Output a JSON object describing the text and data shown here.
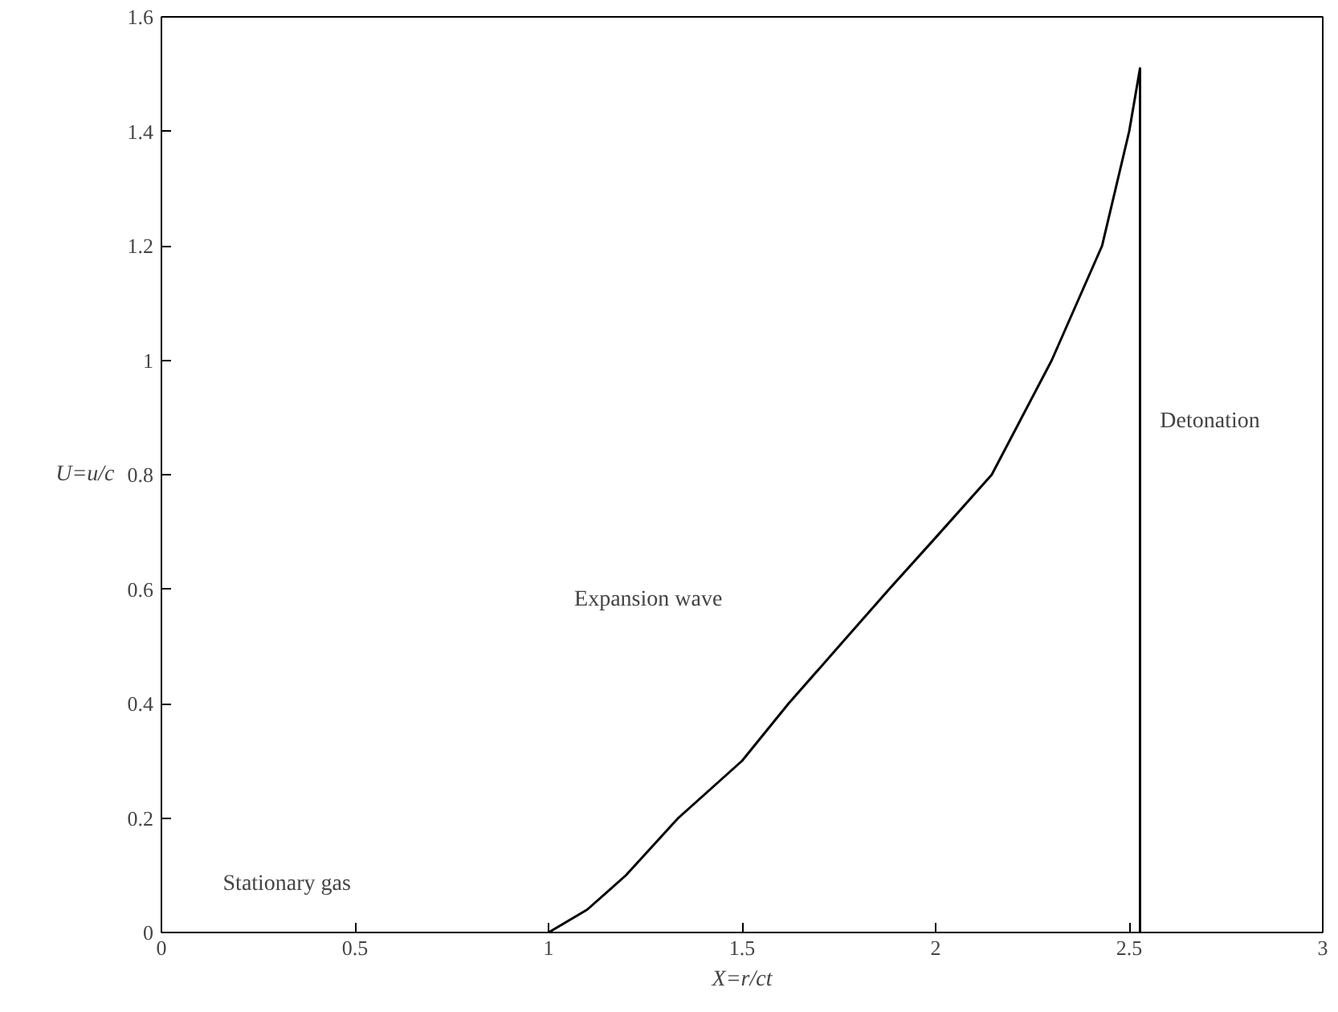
{
  "chart_data": {
    "type": "line",
    "xlabel": "X=r/ct",
    "ylabel": "U=u/c",
    "x": [
      1,
      1.1,
      1.2,
      1.335,
      1.5,
      1.62,
      1.75,
      1.88,
      2,
      2.145,
      2.3,
      2.43,
      2.5,
      2.528,
      2.528
    ],
    "series": [
      {
        "color": "#000000",
        "values": [
          0,
          0.04,
          0.1,
          0.2,
          0.3,
          0.4,
          0.5,
          0.6,
          0.69,
          0.8,
          1.0,
          1.2,
          1.4,
          1.51,
          0
        ]
      }
    ],
    "xlim": [
      0,
      3
    ],
    "ylim": [
      0,
      1.6
    ],
    "xticks": [
      0,
      0.5,
      1,
      1.5,
      2,
      2.5,
      3
    ],
    "yticks": [
      0,
      0.2,
      0.4,
      0.6,
      0.8,
      1,
      1.2,
      1.4,
      1.6
    ],
    "grid": false,
    "marker": "none",
    "line_style": "solid",
    "annotations": [
      "Stationary gas",
      "Expansion wave",
      "Detonation"
    ]
  }
}
